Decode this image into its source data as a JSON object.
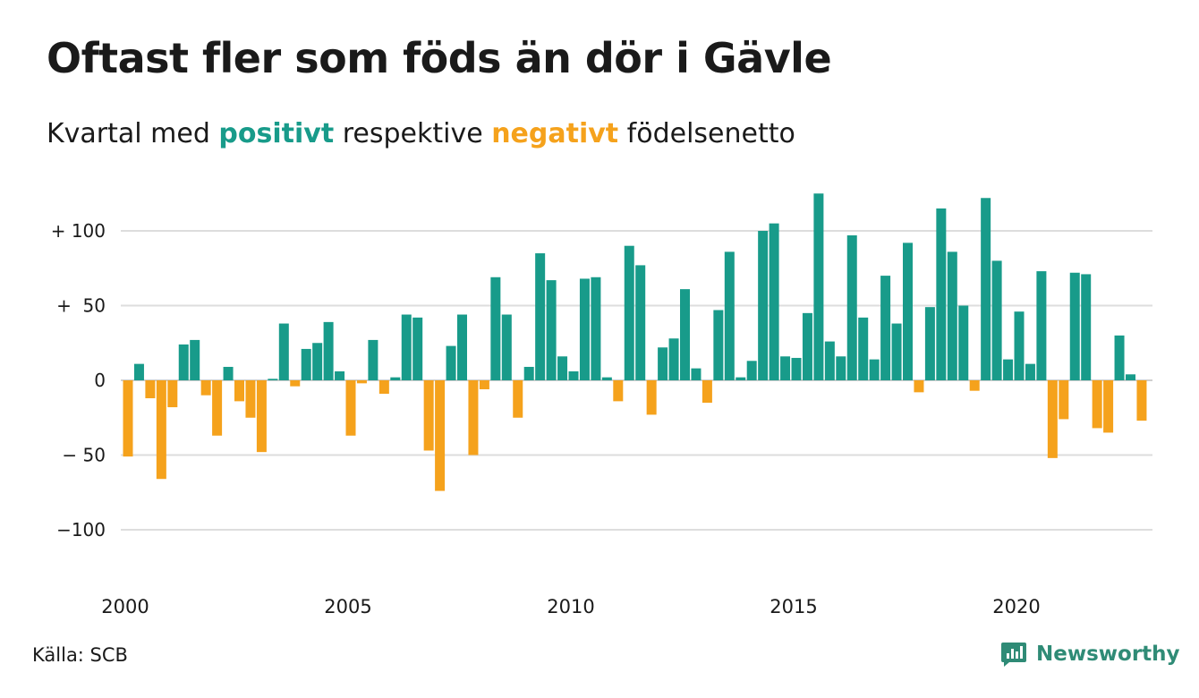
{
  "title": "Oftast fler som föds än dör i Gävle",
  "subtitle": {
    "prefix": "Kvartal med ",
    "positive_word": "positivt",
    "middle": " respektive ",
    "negative_word": "negativt",
    "suffix": " födelsenetto"
  },
  "source": "Källa: SCB",
  "brand": {
    "name": "Newsworthy",
    "icon": "newsworthy-logo-icon"
  },
  "colors": {
    "positive": "#189b8a",
    "negative": "#f5a21c",
    "grid": "#dddddd",
    "text": "#1a1a1a"
  },
  "chart_data": {
    "type": "bar",
    "x_start": "2000 Q1",
    "xticks": [
      {
        "label": "2000",
        "index": 0
      },
      {
        "label": "2005",
        "index": 20
      },
      {
        "label": "2010",
        "index": 40
      },
      {
        "label": "2015",
        "index": 60
      },
      {
        "label": "2020",
        "index": 80
      }
    ],
    "yticks": [
      {
        "value": 100,
        "label": "+ 100"
      },
      {
        "value": 50,
        "label": "+  50"
      },
      {
        "value": 0,
        "label": "0"
      },
      {
        "value": -50,
        "label": "− 50"
      },
      {
        "value": -100,
        "label": "−100"
      }
    ],
    "ylim": [
      -125,
      130
    ],
    "grid": true,
    "values": [
      -51,
      11,
      -12,
      -66,
      -18,
      24,
      27,
      -10,
      -37,
      9,
      -14,
      -25,
      -48,
      1,
      38,
      -4,
      21,
      25,
      39,
      6,
      -37,
      -2,
      27,
      -9,
      2,
      44,
      42,
      -47,
      -74,
      23,
      44,
      -50,
      -6,
      69,
      44,
      -25,
      9,
      85,
      67,
      16,
      6,
      68,
      69,
      2,
      -14,
      90,
      77,
      -23,
      22,
      28,
      61,
      8,
      -15,
      47,
      86,
      2,
      13,
      100,
      105,
      16,
      15,
      45,
      125,
      26,
      16,
      97,
      42,
      14,
      70,
      38,
      92,
      -8,
      49,
      115,
      86,
      50,
      -7,
      122,
      80,
      14,
      46,
      11,
      73,
      -52,
      -26,
      72,
      71,
      -32,
      -35,
      30,
      4,
      -27
    ]
  }
}
